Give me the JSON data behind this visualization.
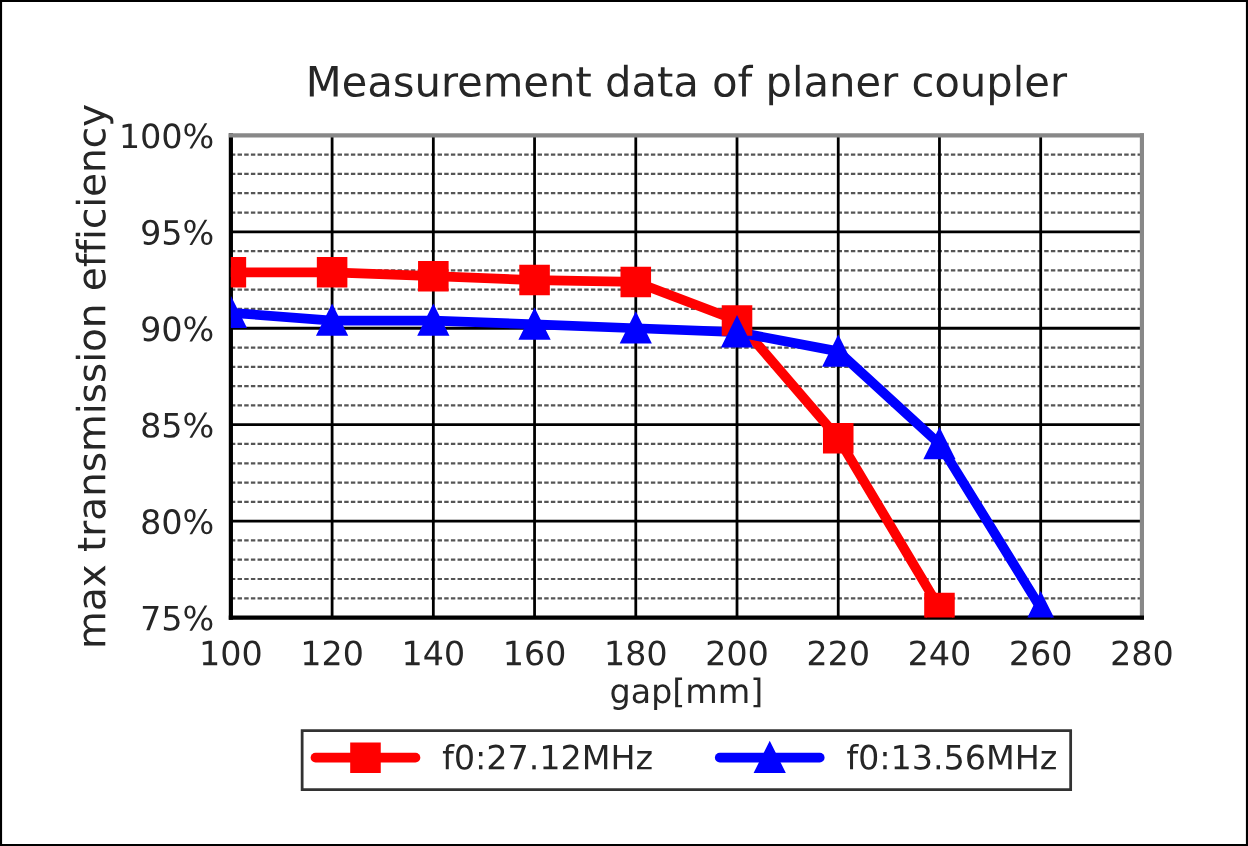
{
  "chart_data": {
    "type": "line",
    "title": "Measurement data of planer coupler",
    "xlabel": "gap[mm]",
    "ylabel": "max transmission efficiency",
    "xlim": [
      100,
      280
    ],
    "xticks": [
      100,
      120,
      140,
      160,
      180,
      200,
      220,
      240,
      260,
      280
    ],
    "ylim": [
      75,
      100
    ],
    "yticks": [
      {
        "value": 75,
        "label": "75%"
      },
      {
        "value": 80,
        "label": "80%"
      },
      {
        "value": 85,
        "label": "85%"
      },
      {
        "value": 90,
        "label": "90%"
      },
      {
        "value": 95,
        "label": "95%"
      },
      {
        "value": 100,
        "label": "100%"
      }
    ],
    "grid": true,
    "legend": "bottom",
    "line_style": "solid",
    "series": [
      {
        "name": "f0:27.12MHz",
        "color": "#ff0000",
        "marker": "square",
        "x": [
          100,
          120,
          140,
          160,
          180,
          200,
          220,
          240
        ],
        "values": [
          92.9,
          92.9,
          92.7,
          92.5,
          92.4,
          90.4,
          84.3,
          75.5
        ]
      },
      {
        "name": "f0:13.56MHz",
        "color": "#0000ff",
        "marker": "triangle",
        "x": [
          100,
          120,
          140,
          160,
          180,
          200,
          220,
          240,
          260
        ],
        "values": [
          90.8,
          90.4,
          90.4,
          90.2,
          90.0,
          89.8,
          88.8,
          84.0,
          75.5
        ]
      }
    ]
  }
}
